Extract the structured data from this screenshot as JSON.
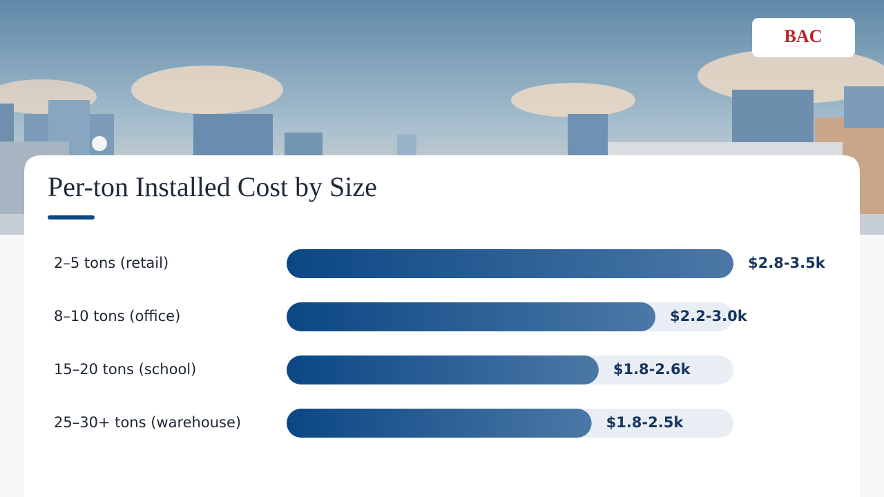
{
  "logo": "BAC",
  "chart_data": {
    "type": "bar",
    "orientation": "horizontal",
    "title": "Per-ton Installed Cost by Size",
    "categories": [
      "2–5 tons (retail)",
      "8–10 tons (office)",
      "15–20 tons (school)",
      "25–30+ tons (warehouse)"
    ],
    "values": [
      3.15,
      2.6,
      2.2,
      2.15
    ],
    "value_labels": [
      "$2.8-3.5k",
      "$2.2-3.0k",
      "$1.8-2.6k",
      "$1.8-2.5k"
    ],
    "xlim": [
      0,
      3.15
    ],
    "color": "#0b4785"
  }
}
